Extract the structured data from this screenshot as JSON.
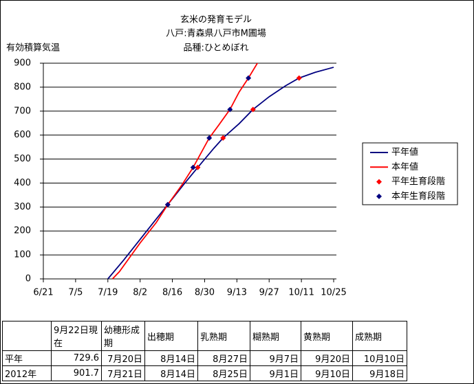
{
  "chart_data": {
    "type": "line",
    "title": [
      "玄米の発育モデル",
      "八戸:青森県八戸市M圃場",
      "品種:ひとめぼれ"
    ],
    "y_label": "有効積算気温",
    "xlim": [
      "6/21",
      "10/25"
    ],
    "xticks": [
      "6/21",
      "7/5",
      "7/19",
      "8/2",
      "8/16",
      "8/30",
      "9/13",
      "9/27",
      "10/11",
      "10/25"
    ],
    "ylim": [
      0,
      900
    ],
    "yticks": [
      0,
      100,
      200,
      300,
      400,
      500,
      600,
      700,
      800,
      900
    ],
    "grid": true,
    "series": [
      {
        "name": "平年値",
        "type": "line",
        "color": "#000080",
        "x": [
          "7/19",
          "7/26",
          "8/2",
          "8/9",
          "8/14",
          "8/21",
          "8/27",
          "9/3",
          "9/7",
          "9/14",
          "9/20",
          "9/27",
          "10/4",
          "10/10",
          "10/17",
          "10/25"
        ],
        "values": [
          0,
          80,
          165,
          250,
          310,
          395,
          465,
          545,
          588,
          648,
          707,
          760,
          805,
          838,
          862,
          883
        ]
      },
      {
        "name": "本年値",
        "type": "line",
        "color": "#ff0000",
        "x": [
          "7/21",
          "7/24",
          "8/2",
          "8/9",
          "8/14",
          "8/20",
          "8/25",
          "9/1",
          "9/5",
          "9/10",
          "9/14",
          "9/18",
          "9/22"
        ],
        "values": [
          0,
          30,
          150,
          235,
          310,
          390,
          465,
          588,
          640,
          707,
          780,
          838,
          901.7
        ]
      },
      {
        "name": "平年生育段階",
        "type": "scatter",
        "color": "#ff0000",
        "x": [
          "8/14",
          "8/27",
          "9/7",
          "9/20",
          "10/10"
        ],
        "values": [
          310,
          465,
          588,
          707,
          838
        ]
      },
      {
        "name": "本年生育段階",
        "type": "scatter",
        "color": "#000080",
        "x": [
          "8/14",
          "8/25",
          "9/1",
          "9/10",
          "9/18"
        ],
        "values": [
          310,
          465,
          588,
          707,
          838
        ]
      }
    ]
  },
  "table": {
    "header": [
      "9月22日現在",
      "幼穂形成期",
      "出穂期",
      "乳熟期",
      "糊熟期",
      "黄熟期",
      "成熟期"
    ],
    "rows": [
      [
        "平年",
        "729.6",
        "7月20日",
        "8月14日",
        "8月27日",
        "9月7日",
        "9月20日",
        "10月10日"
      ],
      [
        "2012年",
        "901.7",
        "7月21日",
        "8月14日",
        "8月25日",
        "9月1日",
        "9月10日",
        "9月18日"
      ]
    ]
  }
}
